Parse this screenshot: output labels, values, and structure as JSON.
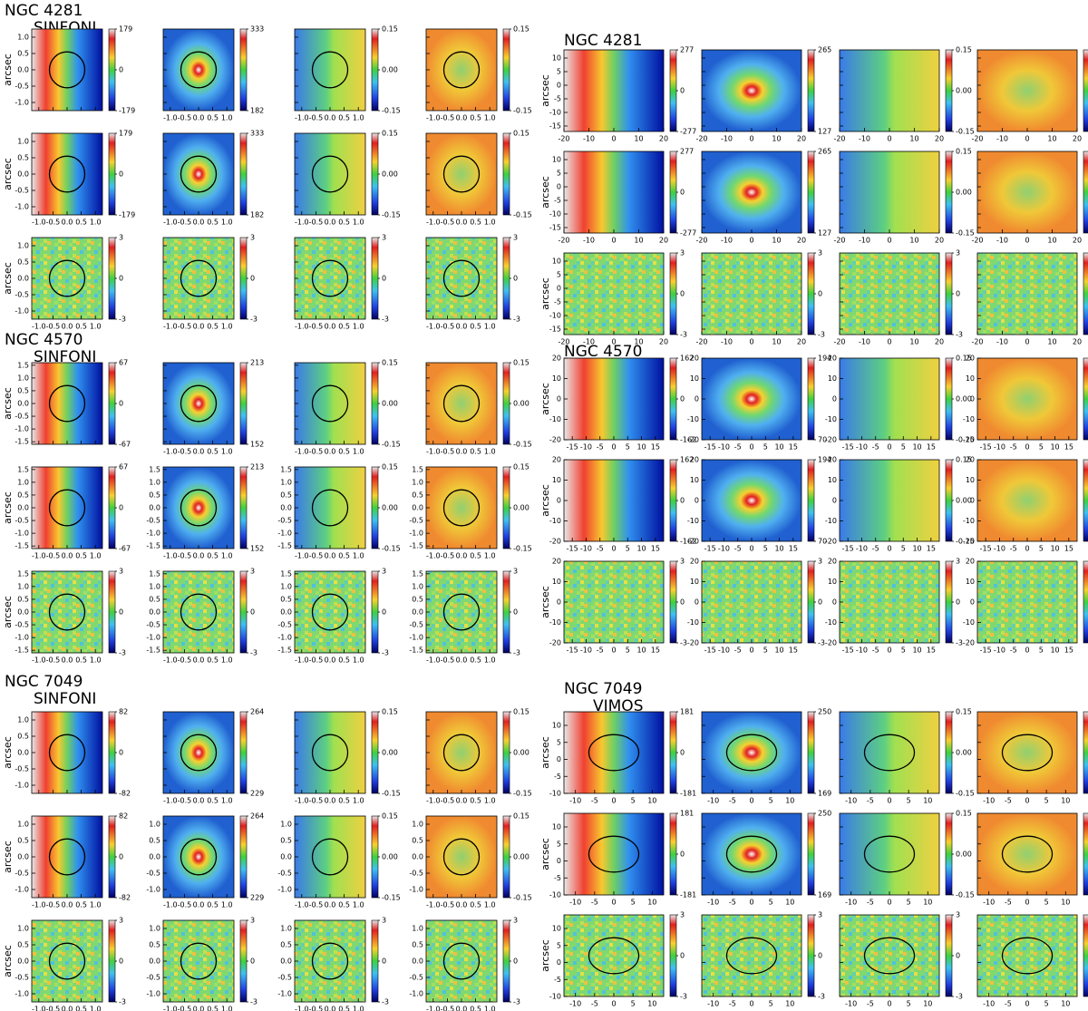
{
  "blocks": [
    {
      "title": [
        "NGC 4281",
        "SINFONI"
      ],
      "ylabel": "arcsec",
      "contour": true,
      "xlim": [
        -1.25,
        1.25
      ],
      "xticks": [
        {
          "value": -1,
          "label": "-1.0"
        },
        -0.5,
        {
          "value": 0,
          "label": "0.0"
        },
        0.5,
        {
          "value": 1,
          "label": "1.0"
        }
      ],
      "ylim": [
        -1.25,
        1.25
      ],
      "yticks": [
        {
          "value": -1,
          "label": "-1.0"
        },
        -0.5,
        {
          "value": 0,
          "label": "0.0"
        },
        0.5,
        {
          "value": 1,
          "label": "1.0"
        }
      ],
      "colorbars": [
        {
          "clim": [
            -179,
            179
          ],
          "cticks": [
            179,
            0,
            -179
          ]
        },
        {
          "clim": [
            182,
            333
          ],
          "cticks": [
            333,
            182
          ]
        },
        {
          "clim": [
            -0.15,
            0.15
          ],
          "cticks": [
            0.15,
            {
              "value": 0,
              "label": "0.00"
            },
            -0.15
          ]
        },
        {
          "clim": [
            -0.15,
            0.15
          ],
          "cticks": [
            0.15,
            -0.15
          ]
        }
      ],
      "residual_colorbar": {
        "clim": [
          -3,
          3
        ],
        "cticks": [
          3,
          0,
          -3
        ]
      },
      "show_x": [
        [
          false,
          true,
          true,
          true
        ],
        [
          true,
          true,
          true,
          true
        ],
        [
          true,
          true,
          true,
          true
        ]
      ],
      "show_y": [
        [
          true,
          false,
          false,
          false
        ],
        [
          true,
          false,
          false,
          false
        ],
        [
          true,
          false,
          false,
          false
        ]
      ]
    },
    {
      "title": [
        "NGC 4281"
      ],
      "ylabel": "arcsec",
      "contour": false,
      "xlim": [
        -20,
        20
      ],
      "xticks": [
        -20,
        -10,
        0,
        10,
        20
      ],
      "ylim": [
        -17,
        13
      ],
      "yticks": [
        -15,
        -10,
        -5,
        0,
        5,
        10
      ],
      "colorbars": [
        {
          "clim": [
            -277,
            277
          ],
          "cticks": [
            277,
            0,
            -277
          ]
        },
        {
          "clim": [
            127,
            265
          ],
          "cticks": [
            265,
            127
          ]
        },
        {
          "clim": [
            -0.15,
            0.15
          ],
          "cticks": [
            0.15,
            {
              "value": 0,
              "label": "0.00"
            },
            -0.15
          ]
        },
        {
          "clim": [
            -0.15,
            0.15
          ],
          "cticks": [
            0.15,
            {
              "value": 0,
              "label": "0.00"
            },
            -0.15
          ]
        }
      ],
      "residual_colorbar": {
        "clim": [
          -3,
          3
        ],
        "cticks": [
          3,
          0,
          -3
        ]
      },
      "show_x": [
        [
          true,
          true,
          true,
          true
        ],
        [
          true,
          true,
          true,
          true
        ],
        [
          true,
          true,
          true,
          true
        ]
      ],
      "show_y": [
        [
          true,
          false,
          false,
          false
        ],
        [
          true,
          false,
          false,
          false
        ],
        [
          true,
          false,
          false,
          false
        ]
      ]
    },
    {
      "title": [
        "NGC 4570",
        "SINFONI"
      ],
      "ylabel": "arcsec",
      "contour": true,
      "xlim": [
        -1.25,
        1.25
      ],
      "xticks": [
        {
          "value": -1,
          "label": "-1.0"
        },
        -0.5,
        {
          "value": 0,
          "label": "0.0"
        },
        0.5,
        {
          "value": 1,
          "label": "1.0"
        }
      ],
      "ylim": [
        -1.6,
        1.6
      ],
      "yticks": [
        -1.5,
        {
          "value": -1,
          "label": "-1.0"
        },
        -0.5,
        {
          "value": 0,
          "label": "0.0"
        },
        0.5,
        {
          "value": 1,
          "label": "1.0"
        },
        1.5
      ],
      "colorbars": [
        {
          "clim": [
            -67,
            67
          ],
          "cticks": [
            67,
            0,
            -67
          ]
        },
        {
          "clim": [
            152,
            213
          ],
          "cticks": [
            213,
            152
          ]
        },
        {
          "clim": [
            -0.15,
            0.15
          ],
          "cticks": [
            0.15,
            {
              "value": 0,
              "label": "0.00"
            },
            -0.15
          ]
        },
        {
          "clim": [
            -0.15,
            0.15
          ],
          "cticks": [
            0.15,
            {
              "value": 0,
              "label": "0.00"
            },
            -0.15
          ]
        }
      ],
      "residual_colorbar": {
        "clim": [
          -3,
          3
        ],
        "cticks": [
          3,
          0,
          -3
        ]
      },
      "show_x": [
        [
          false,
          true,
          true,
          true
        ],
        [
          true,
          true,
          true,
          true
        ],
        [
          true,
          true,
          true,
          true
        ]
      ],
      "show_y": [
        [
          true,
          false,
          false,
          false
        ],
        [
          true,
          true,
          true,
          true
        ],
        [
          true,
          true,
          true,
          true
        ]
      ]
    },
    {
      "title": [
        "NGC 4570"
      ],
      "ylabel": "arcsec",
      "contour": false,
      "xlim": [
        -18,
        18
      ],
      "xticks": [
        -15,
        -10,
        -5,
        0,
        5,
        10,
        15
      ],
      "ylim": [
        -20,
        20
      ],
      "yticks": [
        -20,
        -10,
        0,
        10,
        20
      ],
      "colorbars": [
        {
          "clim": [
            -162,
            162
          ],
          "cticks": [
            162,
            0,
            -162
          ]
        },
        {
          "clim": [
            70,
            194
          ],
          "cticks": [
            194,
            70
          ]
        },
        {
          "clim": [
            -0.15,
            0.15
          ],
          "cticks": [
            0.15,
            {
              "value": 0,
              "label": "0.00"
            },
            -0.15
          ]
        },
        {
          "clim": [
            -0.15,
            0.15
          ],
          "cticks": [
            0.15,
            {
              "value": 0,
              "label": "0.00"
            },
            -0.15
          ]
        }
      ],
      "residual_colorbar": {
        "clim": [
          -3,
          3
        ],
        "cticks": [
          3,
          0,
          -3
        ]
      },
      "show_x": [
        [
          true,
          true,
          true,
          true
        ],
        [
          true,
          true,
          true,
          true
        ],
        [
          true,
          true,
          true,
          true
        ]
      ],
      "show_y": [
        [
          true,
          true,
          true,
          true
        ],
        [
          true,
          true,
          true,
          true
        ],
        [
          true,
          true,
          true,
          true
        ]
      ]
    },
    {
      "title": [
        "NGC 7049",
        "SINFONI"
      ],
      "ylabel": "arcsec",
      "contour": true,
      "xlim": [
        -1.25,
        1.25
      ],
      "xticks": [
        {
          "value": -1,
          "label": "-1.0"
        },
        -0.5,
        {
          "value": 0,
          "label": "0.0"
        },
        0.5,
        {
          "value": 1,
          "label": "1.0"
        }
      ],
      "ylim": [
        -1.25,
        1.25
      ],
      "yticks": [
        {
          "value": -1,
          "label": "-1.0"
        },
        -0.5,
        {
          "value": 0,
          "label": "0.0"
        },
        0.5,
        {
          "value": 1,
          "label": "1.0"
        }
      ],
      "colorbars": [
        {
          "clim": [
            -82,
            82
          ],
          "cticks": [
            82,
            0,
            -82
          ]
        },
        {
          "clim": [
            229,
            264
          ],
          "cticks": [
            264,
            229
          ]
        },
        {
          "clim": [
            -0.15,
            0.15
          ],
          "cticks": [
            0.15,
            {
              "value": 0,
              "label": "0.00"
            },
            -0.15
          ]
        },
        {
          "clim": [
            -0.15,
            0.15
          ],
          "cticks": [
            0.15,
            {
              "value": 0,
              "label": "0.00"
            },
            -0.15
          ]
        }
      ],
      "residual_colorbar": {
        "clim": [
          -3,
          3
        ],
        "cticks": [
          3,
          0,
          -3
        ]
      },
      "show_x": [
        [
          false,
          true,
          true,
          true
        ],
        [
          true,
          true,
          true,
          true
        ],
        [
          true,
          true,
          true,
          true
        ]
      ],
      "show_y": [
        [
          true,
          false,
          false,
          false
        ],
        [
          true,
          true,
          true,
          true
        ],
        [
          true,
          true,
          true,
          true
        ]
      ]
    },
    {
      "title": [
        "NGC 7049",
        "VIMOS"
      ],
      "ylabel": "arcsec",
      "contour": true,
      "xlim": [
        -13,
        13
      ],
      "xticks": [
        -10,
        -5,
        0,
        5,
        10
      ],
      "ylim": [
        -10,
        14
      ],
      "yticks": [
        -10,
        -5,
        0,
        5,
        10
      ],
      "colorbars": [
        {
          "clim": [
            -181,
            181
          ],
          "cticks": [
            181,
            0,
            -181
          ]
        },
        {
          "clim": [
            169,
            250
          ],
          "cticks": [
            250,
            169
          ]
        },
        {
          "clim": [
            -0.15,
            0.15
          ],
          "cticks": [
            0.15,
            {
              "value": 0,
              "label": "0.00"
            },
            -0.15
          ]
        },
        {
          "clim": [
            -0.15,
            0.15
          ],
          "cticks": [
            0.15,
            {
              "value": 0,
              "label": "0.00"
            },
            -0.15
          ]
        }
      ],
      "residual_colorbar": {
        "clim": [
          -3,
          3
        ],
        "cticks": [
          3,
          0,
          -3
        ]
      },
      "show_x": [
        [
          true,
          true,
          true,
          true
        ],
        [
          true,
          true,
          true,
          true
        ],
        [
          true,
          true,
          true,
          true
        ]
      ],
      "show_y": [
        [
          true,
          false,
          false,
          false
        ],
        [
          true,
          false,
          false,
          false
        ],
        [
          true,
          false,
          false,
          false
        ]
      ]
    }
  ]
}
